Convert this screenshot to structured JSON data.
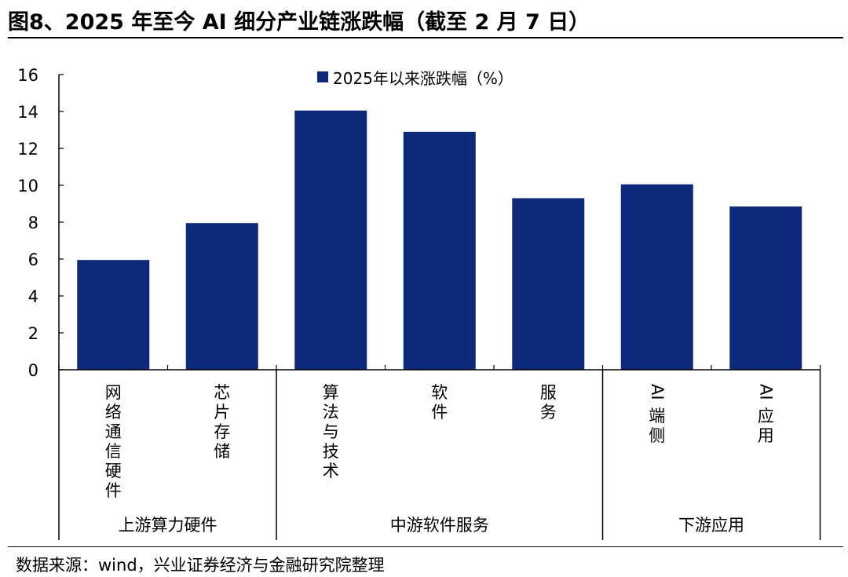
{
  "title": "图8、2025 年至今 AI 细分产业链涨跌幅（截至 2 月 7 日）",
  "source": "数据来源：wind，兴业证券经济与金融研究院整理",
  "colors": {
    "bar": "#0d2a7a",
    "axis": "#000000"
  },
  "chart_data": {
    "type": "bar",
    "title": "",
    "xlabel": "",
    "ylabel": "",
    "ylim": [
      0,
      16
    ],
    "yticks": [
      "0",
      "2",
      "4",
      "6",
      "8",
      "10",
      "12",
      "14",
      "16"
    ],
    "grid": false,
    "legend_position": "top-center",
    "categories": [
      "网络通信硬件",
      "芯片存储",
      "算法与技术",
      "软件",
      "服务",
      "AI 端侧",
      "AI 应用"
    ],
    "series": [
      {
        "name": "2025年以来涨跌幅（%）",
        "values": [
          5.95,
          7.95,
          14.05,
          12.9,
          9.3,
          10.05,
          8.85
        ]
      }
    ],
    "groups": [
      {
        "label": "上游算力硬件",
        "members": [
          0,
          1
        ]
      },
      {
        "label": "中游软件服务",
        "members": [
          2,
          3,
          4
        ]
      },
      {
        "label": "下游应用",
        "members": [
          5,
          6
        ]
      }
    ]
  }
}
